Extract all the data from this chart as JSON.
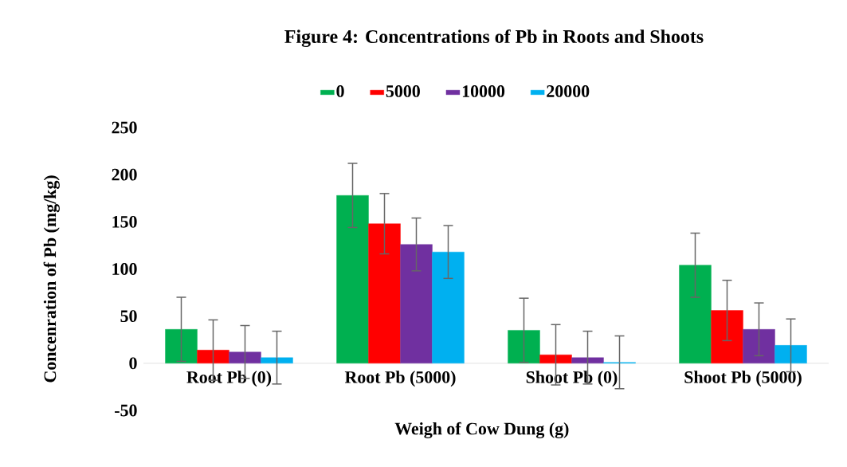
{
  "chart_data": {
    "type": "bar",
    "title": "Figure 4: Concentrations of Pb in Roots and Shoots",
    "xlabel": "Weigh of Cow Dung (g)",
    "ylabel": "Concenration of Pb (mg/kg)",
    "categories": [
      "Root Pb (0)",
      "Root Pb (5000)",
      "Shoot Pb (0)",
      "Shoot Pb (5000)"
    ],
    "series": [
      {
        "name": "0",
        "color": "#00b050",
        "values": [
          36,
          178,
          35,
          104
        ],
        "errors": [
          34,
          34,
          34,
          34
        ]
      },
      {
        "name": "5000",
        "color": "#ff0000",
        "values": [
          14,
          148,
          9,
          56
        ],
        "errors": [
          32,
          32,
          32,
          32
        ]
      },
      {
        "name": "10000",
        "color": "#7030a0",
        "values": [
          12,
          126,
          6,
          36
        ],
        "errors": [
          28,
          28,
          28,
          28
        ]
      },
      {
        "name": "20000",
        "color": "#00b0f0",
        "values": [
          6,
          118,
          1,
          19
        ],
        "errors": [
          28,
          28,
          28,
          28
        ]
      }
    ],
    "ylim": [
      -50,
      250
    ],
    "yticks": [
      -50,
      0,
      50,
      100,
      150,
      200,
      250
    ],
    "grid": false,
    "legend": "top"
  }
}
